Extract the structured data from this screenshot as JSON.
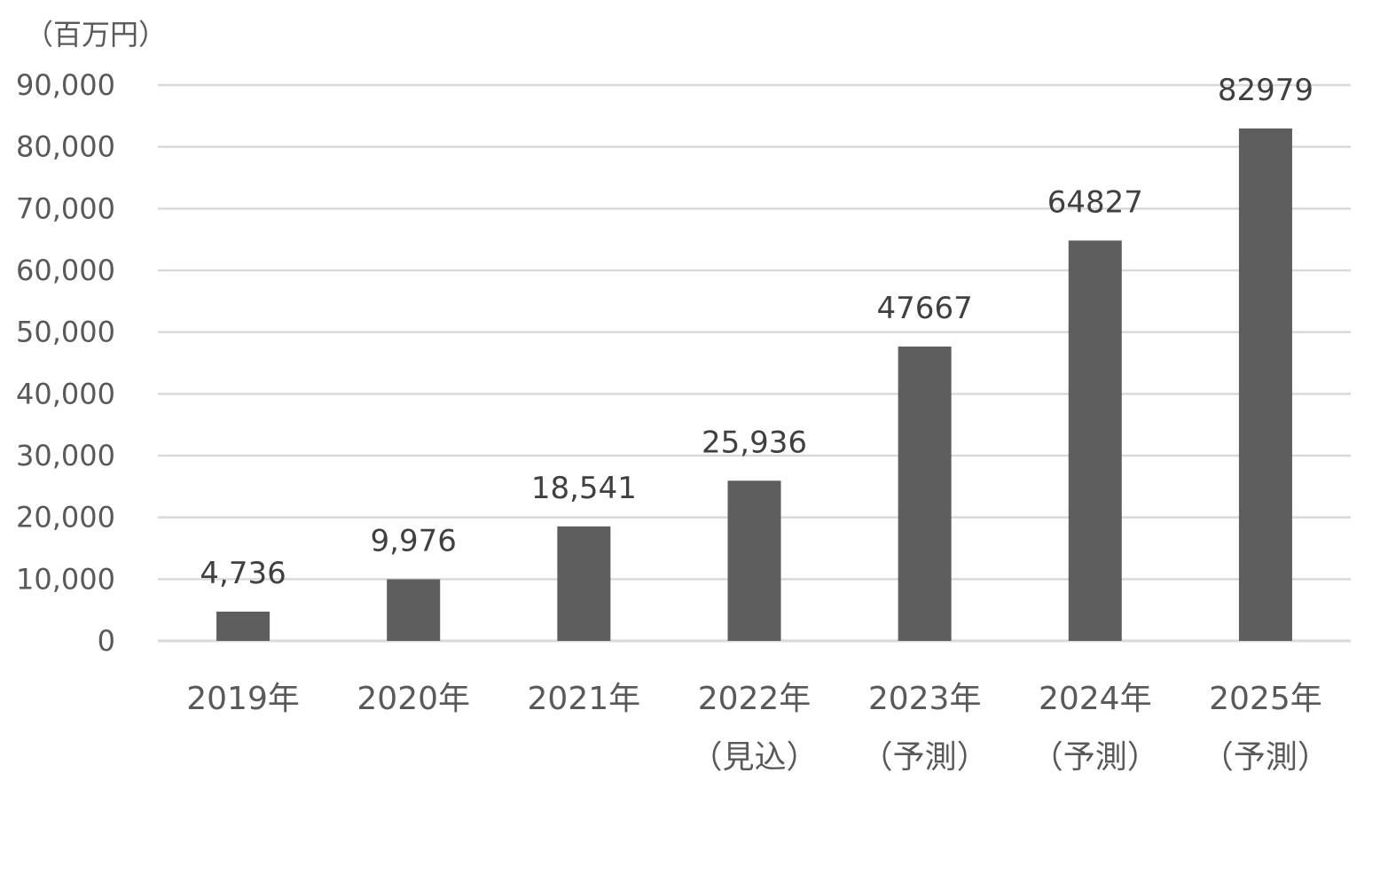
{
  "chart_data": {
    "type": "bar",
    "title": "",
    "unit_label": "（百万円）",
    "categories": [
      {
        "line1": "2019年",
        "line2": ""
      },
      {
        "line1": "2020年",
        "line2": ""
      },
      {
        "line1": "2021年",
        "line2": ""
      },
      {
        "line1": "2022年",
        "line2": "（見込）"
      },
      {
        "line1": "2023年",
        "line2": "（予測）"
      },
      {
        "line1": "2024年",
        "line2": "（予測）"
      },
      {
        "line1": "2025年",
        "line2": "（予測）"
      }
    ],
    "values": [
      4736,
      9976,
      18541,
      25936,
      47667,
      64827,
      82979
    ],
    "data_labels": [
      "4,736",
      "9,976",
      "18,541",
      "25,936",
      "47667",
      "64827",
      "82979"
    ],
    "ylim": [
      0,
      90000
    ],
    "yticks": [
      0,
      10000,
      20000,
      30000,
      40000,
      50000,
      60000,
      70000,
      80000,
      90000
    ],
    "ytick_labels": [
      "0",
      "10,000",
      "20,000",
      "30,000",
      "40,000",
      "50,000",
      "60,000",
      "70,000",
      "80,000",
      "90,000"
    ],
    "grid": true,
    "legend": "none",
    "colors": {
      "bar": "#5e5e5e",
      "grid": "#d9d9d9",
      "axis": "#d9d9d9"
    }
  }
}
